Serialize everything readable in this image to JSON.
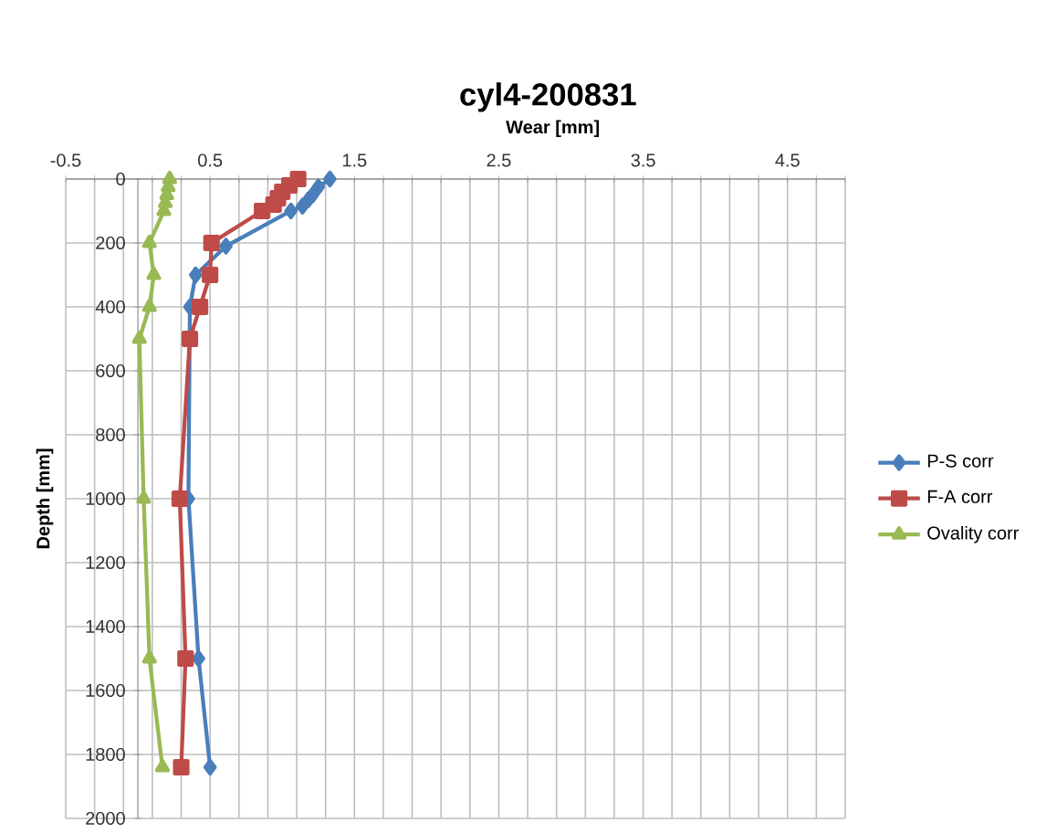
{
  "chart_data": {
    "type": "line",
    "title": "cyl4-200831",
    "xlabel": "Wear [mm]",
    "ylabel": "Depth [mm]",
    "xlim": [
      -0.5,
      4.9
    ],
    "ylim": [
      2000,
      0
    ],
    "xticks": [
      -0.5,
      {
        "value": -0.3,
        "label": null
      },
      {
        "value": -0.1,
        "label": null
      },
      {
        "value": 0.1,
        "label": null
      },
      {
        "value": 0.3,
        "label": null
      },
      0.5,
      {
        "value": 0.7,
        "label": null
      },
      {
        "value": 0.9,
        "label": null
      },
      {
        "value": 1.1,
        "label": null
      },
      {
        "value": 1.3,
        "label": null
      },
      1.5,
      {
        "value": 1.7,
        "label": null
      },
      {
        "value": 1.9,
        "label": null
      },
      {
        "value": 2.1,
        "label": null
      },
      {
        "value": 2.3,
        "label": null
      },
      2.5,
      {
        "value": 2.7,
        "label": null
      },
      {
        "value": 2.9,
        "label": null
      },
      {
        "value": 3.1,
        "label": null
      },
      {
        "value": 3.3,
        "label": null
      },
      3.5,
      {
        "value": 3.7,
        "label": null
      },
      {
        "value": 3.9,
        "label": null
      },
      {
        "value": 4.1,
        "label": null
      },
      {
        "value": 4.3,
        "label": null
      },
      4.5,
      {
        "value": 4.7,
        "label": null
      },
      {
        "value": 4.9,
        "label": null
      }
    ],
    "yticks": [
      0,
      200,
      400,
      600,
      800,
      1000,
      1200,
      1400,
      1600,
      1800,
      2000
    ],
    "grid": true,
    "legend": "right",
    "line_style": "solid",
    "series": [
      {
        "name": "P-S corr",
        "color": "#4a7ebb",
        "marker": "diamond",
        "x": [
          1.33,
          1.25,
          1.21,
          1.18,
          1.14,
          1.06,
          0.61,
          0.4,
          0.36,
          null,
          0.35,
          0.42,
          0.5
        ],
        "values": [
          0,
          25,
          50,
          65,
          85,
          100,
          210,
          300,
          400,
          null,
          1000,
          1500,
          1840
        ]
      },
      {
        "name": "F-A corr",
        "color": "#be4b48",
        "marker": "square",
        "x": [
          1.11,
          1.05,
          1.0,
          0.97,
          0.94,
          0.86,
          0.51,
          0.5,
          0.43,
          0.36,
          0.29,
          0.33,
          0.3
        ],
        "values": [
          0,
          20,
          40,
          60,
          80,
          100,
          200,
          300,
          400,
          500,
          1000,
          1500,
          1840
        ]
      },
      {
        "name": "Ovality corr",
        "color": "#98b954",
        "marker": "triangle",
        "x": [
          0.22,
          0.21,
          0.2,
          0.19,
          0.18,
          0.08,
          0.11,
          0.08,
          0.01,
          0.04,
          0.08,
          0.17
        ],
        "values": [
          0,
          25,
          50,
          75,
          100,
          200,
          300,
          400,
          500,
          1000,
          1500,
          1840
        ]
      }
    ]
  }
}
